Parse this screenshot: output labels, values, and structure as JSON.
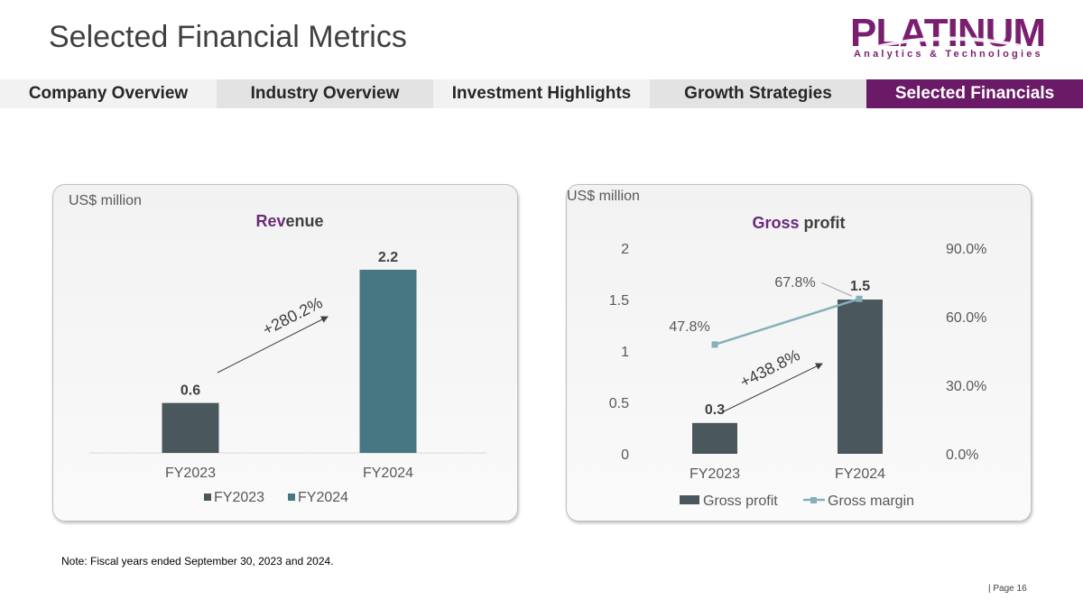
{
  "title": "Selected Financial Metrics",
  "logo": {
    "name": "PLATINUM",
    "tagline": "Analytics & Technologies"
  },
  "nav": [
    {
      "label": "Company Overview",
      "style": "light"
    },
    {
      "label": "Industry Overview",
      "style": "mid"
    },
    {
      "label": "Investment Highlights",
      "style": "light"
    },
    {
      "label": "Growth Strategies",
      "style": "mid"
    },
    {
      "label": "Selected Financials",
      "style": "active"
    }
  ],
  "colors": {
    "accent": "#6b1a68",
    "bar_fy2023": "#4a585e",
    "bar_fy2024": "#477783",
    "margin_line": "#86b0b8",
    "title_highlight": "#6b2a7a"
  },
  "note": "Note: Fiscal years ended September 30, 2023 and 2024.",
  "page": "| Page 16",
  "chart_data": [
    {
      "type": "bar",
      "unit": "US$ million",
      "title_parts": [
        {
          "text": "Rev",
          "color": "#6b2a7a"
        },
        {
          "text": "enue",
          "color": "#404040"
        }
      ],
      "categories": [
        "FY2023",
        "FY2024"
      ],
      "series": [
        {
          "name": "FY2023",
          "values": [
            0.6,
            null
          ],
          "color": "#4a585e"
        },
        {
          "name": "FY2024",
          "values": [
            null,
            2.2
          ],
          "color": "#477783"
        }
      ],
      "data_labels": [
        "0.6",
        "2.2"
      ],
      "annotation": "+280.2%",
      "legend": "bottom"
    },
    {
      "type": "bar+line",
      "unit": "US$ million",
      "title_parts": [
        {
          "text": "Gross",
          "color": "#6b2a7a"
        },
        {
          "text": " profit",
          "color": "#404040"
        }
      ],
      "categories": [
        "FY2023",
        "FY2024"
      ],
      "series": [
        {
          "name": "Gross profit",
          "type": "bar",
          "axis": "left",
          "values": [
            0.3,
            1.5
          ],
          "labels": [
            "0.3",
            "1.5"
          ],
          "color": "#4a585e"
        },
        {
          "name": "Gross margin",
          "type": "line",
          "axis": "right",
          "values": [
            47.8,
            67.8
          ],
          "labels": [
            "47.8%",
            "67.8%"
          ],
          "color": "#86b0b8"
        }
      ],
      "y_left": {
        "ticks": [
          "0",
          "0.5",
          "1",
          "1.5",
          "2"
        ],
        "ylim": [
          0,
          2
        ]
      },
      "y_right": {
        "ticks": [
          "0.0%",
          "30.0%",
          "60.0%",
          "90.0%"
        ],
        "ylim": [
          0,
          90
        ]
      },
      "annotation": "+438.8%",
      "legend": "bottom"
    }
  ]
}
